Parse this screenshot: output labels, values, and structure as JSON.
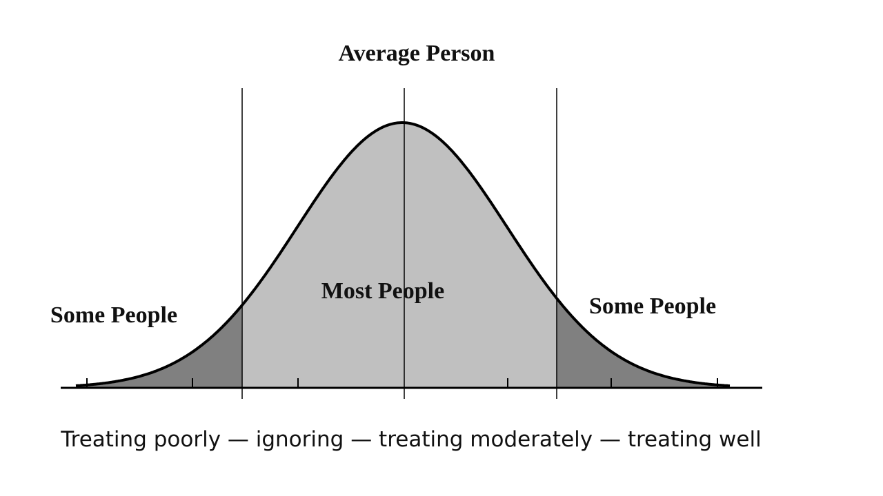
{
  "header": {
    "title": "Average Person"
  },
  "regions": [
    {
      "label": "Some People"
    },
    {
      "label": "Most People"
    },
    {
      "label": "Some People"
    }
  ],
  "caption": "Treating poorly — ignoring — treating moderately — treating well"
}
